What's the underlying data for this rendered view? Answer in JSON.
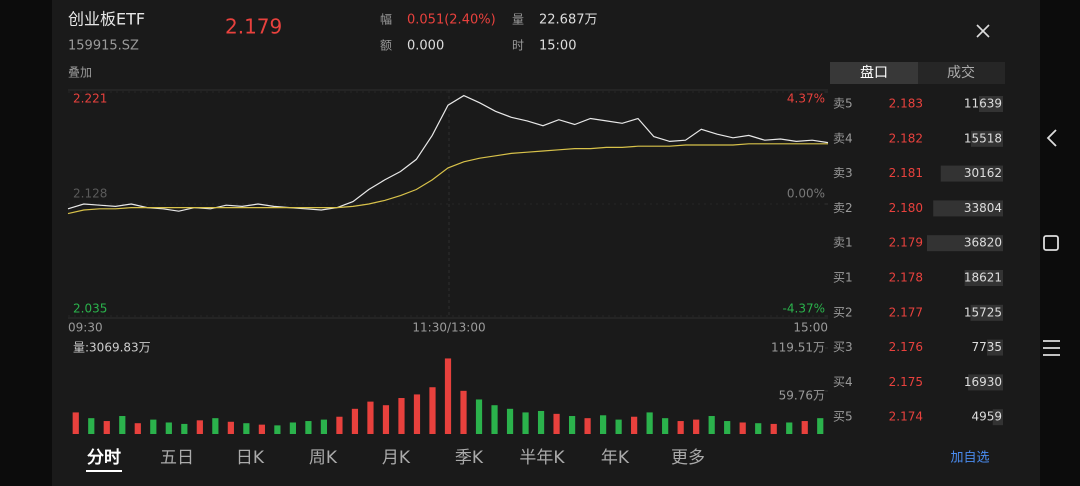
{
  "header": {
    "name": "创业板ETF",
    "code": "159915.SZ",
    "price": "2.179",
    "overlay": "叠加",
    "stats": [
      {
        "label": "幅",
        "value": "0.051(2.40%)"
      },
      {
        "label": "额",
        "value": "0.000"
      },
      {
        "label": "量",
        "value": "22.687万"
      },
      {
        "label": "时",
        "value": "15:00"
      }
    ]
  },
  "price_chart": {
    "type": "line",
    "ylim": [
      2.035,
      2.221
    ],
    "yticks": [
      2.221,
      2.128,
      2.035
    ],
    "y2lim": [
      -4.37,
      4.37
    ],
    "y2ticks": [
      {
        "value": 4.37,
        "label": "4.37%"
      },
      {
        "value": 0,
        "label": "0.00%"
      },
      {
        "value": -4.37,
        "label": "-4.37%"
      }
    ],
    "x_labels": [
      "09:30",
      "11:30/13:00",
      "15:00"
    ],
    "series": [
      {
        "color": "#e8e8e8",
        "values": [
          2.124,
          2.128,
          2.127,
          2.126,
          2.128,
          2.125,
          2.124,
          2.122,
          2.125,
          2.124,
          2.127,
          2.126,
          2.128,
          2.126,
          2.125,
          2.124,
          2.123,
          2.125,
          2.13,
          2.14,
          2.148,
          2.155,
          2.165,
          2.185,
          2.21,
          2.218,
          2.212,
          2.205,
          2.2,
          2.197,
          2.193,
          2.198,
          2.194,
          2.199,
          2.197,
          2.195,
          2.199,
          2.184,
          2.18,
          2.181,
          2.19,
          2.186,
          2.183,
          2.185,
          2.181,
          2.182,
          2.18,
          2.181,
          2.179
        ]
      },
      {
        "color": "#d8c24a",
        "values": [
          2.12,
          2.123,
          2.124,
          2.124,
          2.125,
          2.125,
          2.125,
          2.125,
          2.125,
          2.125,
          2.125,
          2.125,
          2.125,
          2.125,
          2.125,
          2.125,
          2.125,
          2.125,
          2.126,
          2.128,
          2.131,
          2.135,
          2.14,
          2.148,
          2.158,
          2.163,
          2.166,
          2.168,
          2.17,
          2.171,
          2.172,
          2.173,
          2.174,
          2.174,
          2.175,
          2.175,
          2.176,
          2.176,
          2.176,
          2.177,
          2.177,
          2.177,
          2.177,
          2.178,
          2.178,
          2.178,
          2.178,
          2.178,
          2.178
        ]
      }
    ]
  },
  "volume_chart": {
    "type": "bar",
    "title": "量:3069.83万",
    "ylim": [
      0,
      119.51
    ],
    "yticks": [
      {
        "value": 119.51,
        "label": "119.51万"
      },
      {
        "value": 59.76,
        "label": "59.76万"
      }
    ],
    "palette": {
      "up": "#e8413d",
      "down": "#2bb24c"
    },
    "values": [
      30,
      22,
      18,
      25,
      15,
      20,
      16,
      14,
      19,
      22,
      17,
      15,
      13,
      12,
      16,
      18,
      20,
      24,
      35,
      45,
      40,
      50,
      55,
      65,
      105,
      60,
      48,
      40,
      35,
      30,
      32,
      28,
      25,
      22,
      26,
      20,
      24,
      30,
      22,
      18,
      20,
      25,
      18,
      16,
      15,
      14,
      16,
      18,
      22
    ],
    "directions": [
      "up",
      "down",
      "up",
      "down",
      "up",
      "down",
      "down",
      "down",
      "up",
      "down",
      "up",
      "down",
      "up",
      "down",
      "down",
      "down",
      "down",
      "up",
      "up",
      "up",
      "up",
      "up",
      "up",
      "up",
      "up",
      "up",
      "down",
      "down",
      "down",
      "down",
      "down",
      "up",
      "down",
      "up",
      "down",
      "down",
      "up",
      "down",
      "down",
      "up",
      "up",
      "down",
      "down",
      "up",
      "down",
      "up",
      "down",
      "up",
      "down"
    ]
  },
  "order_book": {
    "tabs": [
      "盘口",
      "成交"
    ],
    "rows": [
      {
        "label": "卖5",
        "price": "2.183",
        "volume": 11639
      },
      {
        "label": "卖4",
        "price": "2.182",
        "volume": 15518
      },
      {
        "label": "卖3",
        "price": "2.181",
        "volume": 30162
      },
      {
        "label": "卖2",
        "price": "2.180",
        "volume": 33804
      },
      {
        "label": "卖1",
        "price": "2.179",
        "volume": 36820
      },
      {
        "label": "买1",
        "price": "2.178",
        "volume": 18621
      },
      {
        "label": "买2",
        "price": "2.177",
        "volume": 15725
      },
      {
        "label": "买3",
        "price": "2.176",
        "volume": 7735
      },
      {
        "label": "买4",
        "price": "2.175",
        "volume": 16930
      },
      {
        "label": "买5",
        "price": "2.174",
        "volume": 4959
      }
    ]
  },
  "periods": [
    "分时",
    "五日",
    "日K",
    "周K",
    "月K",
    "季K",
    "半年K",
    "年K",
    "更多"
  ],
  "add_watch": "加自选"
}
